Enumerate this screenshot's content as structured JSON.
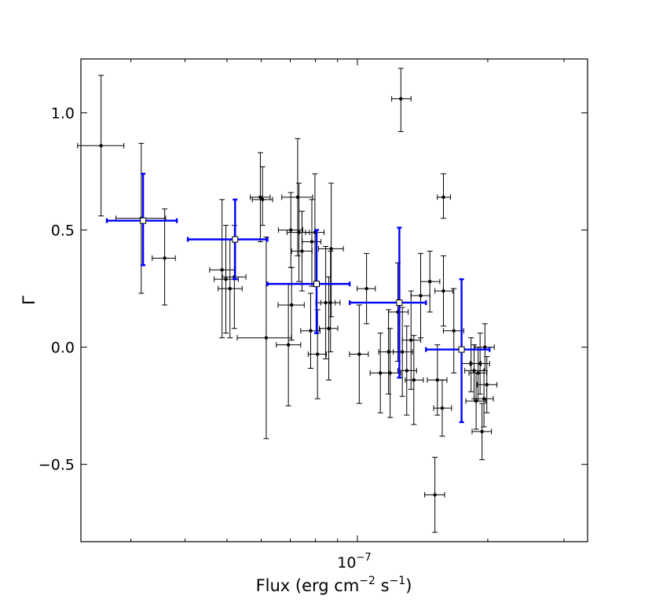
{
  "chart_data": {
    "type": "scatter",
    "title": "",
    "xlabel": "Flux (erg cm−2 s−1)",
    "xlabel_parts": {
      "base": "Flux (erg cm",
      "sup1": "−2",
      "mid": " s",
      "sup2": "−1",
      "end": ")"
    },
    "ylabel": "Γ",
    "x_scale": "log",
    "xlim": [
      2.3e-08,
      3.4e-07
    ],
    "ylim": [
      -0.83,
      1.23
    ],
    "x_tick_label": {
      "value": 1e-07,
      "base": "10",
      "exp": "−7"
    },
    "y_ticks": [
      {
        "value": 1.0,
        "label": "1.0"
      },
      {
        "value": 0.5,
        "label": "0.5"
      },
      {
        "value": 0.0,
        "label": "0.0"
      },
      {
        "value": -0.5,
        "label": "−0.5"
      }
    ],
    "grid": false,
    "legend": "none",
    "series": [
      {
        "color": "#000000",
        "marker": "filled-circle",
        "points": [
          {
            "x": 2.56e-08,
            "y": 0.86,
            "xlo": 2.26e-08,
            "xhi": 2.89e-08,
            "ylo": 0.56,
            "yhi": 1.16
          },
          {
            "x": 3.17e-08,
            "y": 0.55,
            "xlo": 2.77e-08,
            "xhi": 3.61e-08,
            "ylo": 0.23,
            "yhi": 0.87
          },
          {
            "x": 3.59e-08,
            "y": 0.38,
            "xlo": 3.36e-08,
            "xhi": 3.8e-08,
            "ylo": 0.18,
            "yhi": 0.59
          },
          {
            "x": 4.87e-08,
            "y": 0.33,
            "xlo": 4.56e-08,
            "xhi": 5.2e-08,
            "ylo": 0.04,
            "yhi": 0.63
          },
          {
            "x": 4.97e-08,
            "y": 0.29,
            "xlo": 4.67e-08,
            "xhi": 5.31e-08,
            "ylo": 0.06,
            "yhi": 0.52
          },
          {
            "x": 5.08e-08,
            "y": 0.25,
            "xlo": 4.77e-08,
            "xhi": 5.42e-08,
            "ylo": 0.04,
            "yhi": 0.46
          },
          {
            "x": 5.2e-08,
            "y": 0.3,
            "xlo": 4.88e-08,
            "xhi": 5.53e-08,
            "ylo": 0.08,
            "yhi": 0.52
          },
          {
            "x": 5.97e-08,
            "y": 0.64,
            "xlo": 5.66e-08,
            "xhi": 6.29e-08,
            "ylo": 0.45,
            "yhi": 0.83
          },
          {
            "x": 6.04e-08,
            "y": 0.63,
            "xlo": 5.72e-08,
            "xhi": 6.37e-08,
            "ylo": 0.52,
            "yhi": 0.77
          },
          {
            "x": 6.16e-08,
            "y": 0.04,
            "xlo": 5.28e-08,
            "xhi": 7.04e-08,
            "ylo": -0.39,
            "yhi": 0.47
          },
          {
            "x": 6.93e-08,
            "y": 0.01,
            "xlo": 6.5e-08,
            "xhi": 7.4e-08,
            "ylo": -0.25,
            "yhi": 0.27
          },
          {
            "x": 7.02e-08,
            "y": 0.5,
            "xlo": 6.57e-08,
            "xhi": 7.48e-08,
            "ylo": 0.34,
            "yhi": 0.66
          },
          {
            "x": 7.05e-08,
            "y": 0.18,
            "xlo": 6.56e-08,
            "xhi": 7.54e-08,
            "ylo": 0.03,
            "yhi": 0.34
          },
          {
            "x": 7.28e-08,
            "y": 0.64,
            "xlo": 6.69e-08,
            "xhi": 7.88e-08,
            "ylo": 0.39,
            "yhi": 0.89
          },
          {
            "x": 7.33e-08,
            "y": 0.49,
            "xlo": 6.88e-08,
            "xhi": 7.75e-08,
            "ylo": 0.28,
            "yhi": 0.7
          },
          {
            "x": 7.45e-08,
            "y": 0.41,
            "xlo": 7.05e-08,
            "xhi": 7.86e-08,
            "ylo": 0.24,
            "yhi": 0.58
          },
          {
            "x": 7.85e-08,
            "y": 0.45,
            "xlo": 7.46e-08,
            "xhi": 8.24e-08,
            "ylo": 0.26,
            "yhi": 0.63
          },
          {
            "x": 7.8e-08,
            "y": 0.07,
            "xlo": 7.4e-08,
            "xhi": 8.2e-08,
            "ylo": -0.09,
            "yhi": 0.23
          },
          {
            "x": 7.98e-08,
            "y": 0.49,
            "xlo": 7.59e-08,
            "xhi": 8.38e-08,
            "ylo": 0.26,
            "yhi": 0.74
          },
          {
            "x": 8.09e-08,
            "y": -0.03,
            "xlo": 7.7e-08,
            "xhi": 8.48e-08,
            "ylo": -0.22,
            "yhi": 0.16
          },
          {
            "x": 8.45e-08,
            "y": 0.19,
            "xlo": 8.02e-08,
            "xhi": 8.89e-08,
            "ylo": -0.05,
            "yhi": 0.43
          },
          {
            "x": 8.59e-08,
            "y": 0.08,
            "xlo": 8.17e-08,
            "xhi": 9.01e-08,
            "ylo": -0.14,
            "yhi": 0.3
          },
          {
            "x": 8.7e-08,
            "y": 0.42,
            "xlo": 8.13e-08,
            "xhi": 9.28e-08,
            "ylo": 0.13,
            "yhi": 0.7
          },
          {
            "x": 8.67e-08,
            "y": 0.19,
            "xlo": 8.23e-08,
            "xhi": 9.12e-08,
            "ylo": -0.02,
            "yhi": 0.41
          },
          {
            "x": 1.01e-07,
            "y": -0.03,
            "xlo": 9.59e-08,
            "xhi": 1.06e-07,
            "ylo": -0.24,
            "yhi": 0.18
          },
          {
            "x": 1.05e-07,
            "y": 0.25,
            "xlo": 9.99e-08,
            "xhi": 1.1e-07,
            "ylo": 0.1,
            "yhi": 0.4
          },
          {
            "x": 1.13e-07,
            "y": -0.11,
            "xlo": 1.07e-07,
            "xhi": 1.19e-07,
            "ylo": -0.28,
            "yhi": 0.06
          },
          {
            "x": 1.18e-07,
            "y": -0.02,
            "xlo": 1.12e-07,
            "xhi": 1.25e-07,
            "ylo": -0.2,
            "yhi": 0.16
          },
          {
            "x": 1.19e-07,
            "y": -0.11,
            "xlo": 1.13e-07,
            "xhi": 1.26e-07,
            "ylo": -0.3,
            "yhi": 0.08
          },
          {
            "x": 1.24e-07,
            "y": 0.15,
            "xlo": 1.18e-07,
            "xhi": 1.31e-07,
            "ylo": -0.06,
            "yhi": 0.36
          },
          {
            "x": 1.26e-07,
            "y": 1.06,
            "xlo": 1.2e-07,
            "xhi": 1.33e-07,
            "ylo": 0.92,
            "yhi": 1.19
          },
          {
            "x": 1.27e-07,
            "y": -0.02,
            "xlo": 1.21e-07,
            "xhi": 1.34e-07,
            "ylo": -0.21,
            "yhi": 0.17
          },
          {
            "x": 1.3e-07,
            "y": -0.1,
            "xlo": 1.24e-07,
            "xhi": 1.37e-07,
            "ylo": -0.29,
            "yhi": 0.09
          },
          {
            "x": 1.33e-07,
            "y": 0.03,
            "xlo": 1.27e-07,
            "xhi": 1.4e-07,
            "ylo": -0.18,
            "yhi": 0.24
          },
          {
            "x": 1.35e-07,
            "y": -0.14,
            "xlo": 1.29e-07,
            "xhi": 1.42e-07,
            "ylo": -0.33,
            "yhi": 0.05
          },
          {
            "x": 1.4e-07,
            "y": 0.22,
            "xlo": 1.33e-07,
            "xhi": 1.47e-07,
            "ylo": 0.04,
            "yhi": 0.4
          },
          {
            "x": 1.47e-07,
            "y": 0.28,
            "xlo": 1.4e-07,
            "xhi": 1.55e-07,
            "ylo": 0.15,
            "yhi": 0.41
          },
          {
            "x": 1.53e-07,
            "y": -0.14,
            "xlo": 1.45e-07,
            "xhi": 1.61e-07,
            "ylo": -0.29,
            "yhi": 0.01
          },
          {
            "x": 1.51e-07,
            "y": -0.63,
            "xlo": 1.43e-07,
            "xhi": 1.59e-07,
            "ylo": -0.79,
            "yhi": -0.47
          },
          {
            "x": 1.58e-07,
            "y": 0.64,
            "xlo": 1.53e-07,
            "xhi": 1.64e-07,
            "ylo": 0.55,
            "yhi": 0.74
          },
          {
            "x": 1.58e-07,
            "y": 0.24,
            "xlo": 1.51e-07,
            "xhi": 1.66e-07,
            "ylo": 0.09,
            "yhi": 0.39
          },
          {
            "x": 1.57e-07,
            "y": -0.26,
            "xlo": 1.5e-07,
            "xhi": 1.65e-07,
            "ylo": -0.38,
            "yhi": -0.14
          },
          {
            "x": 1.67e-07,
            "y": 0.07,
            "xlo": 1.58e-07,
            "xhi": 1.76e-07,
            "ylo": -0.11,
            "yhi": 0.25
          },
          {
            "x": 1.83e-07,
            "y": -0.07,
            "xlo": 1.74e-07,
            "xhi": 1.93e-07,
            "ylo": -0.19,
            "yhi": 0.04
          },
          {
            "x": 1.86e-07,
            "y": -0.1,
            "xlo": 1.77e-07,
            "xhi": 1.96e-07,
            "ylo": -0.22,
            "yhi": 0.01
          },
          {
            "x": 1.88e-07,
            "y": -0.23,
            "xlo": 1.78e-07,
            "xhi": 1.98e-07,
            "ylo": -0.35,
            "yhi": -0.11
          },
          {
            "x": 1.9e-07,
            "y": -0.11,
            "xlo": 1.81e-07,
            "xhi": 1.99e-07,
            "ylo": -0.23,
            "yhi": 0.0
          },
          {
            "x": 1.92e-07,
            "y": -0.07,
            "xlo": 1.82e-07,
            "xhi": 2.02e-07,
            "ylo": -0.2,
            "yhi": 0.06
          },
          {
            "x": 1.94e-07,
            "y": -0.36,
            "xlo": 1.84e-07,
            "xhi": 2.04e-07,
            "ylo": -0.48,
            "yhi": -0.24
          },
          {
            "x": 1.96e-07,
            "y": -0.22,
            "xlo": 1.86e-07,
            "xhi": 2.06e-07,
            "ylo": -0.34,
            "yhi": -0.1
          },
          {
            "x": 1.97e-07,
            "y": 0.0,
            "xlo": 1.87e-07,
            "xhi": 2.07e-07,
            "ylo": -0.1,
            "yhi": 0.1
          },
          {
            "x": 1.99e-07,
            "y": -0.16,
            "xlo": 1.89e-07,
            "xhi": 2.1e-07,
            "ylo": -0.28,
            "yhi": -0.04
          }
        ]
      },
      {
        "color": "#0000ff",
        "marker": "open-square",
        "points": [
          {
            "x": 3.2e-08,
            "y": 0.54,
            "xlo": 2.64e-08,
            "xhi": 3.83e-08,
            "ylo": 0.35,
            "yhi": 0.74
          },
          {
            "x": 5.22e-08,
            "y": 0.46,
            "xlo": 4.06e-08,
            "xhi": 6.2e-08,
            "ylo": 0.29,
            "yhi": 0.63
          },
          {
            "x": 8.05e-08,
            "y": 0.27,
            "xlo": 6.2e-08,
            "xhi": 9.6e-08,
            "ylo": 0.06,
            "yhi": 0.5
          },
          {
            "x": 1.25e-07,
            "y": 0.19,
            "xlo": 9.6e-08,
            "xhi": 1.44e-07,
            "ylo": -0.13,
            "yhi": 0.51
          },
          {
            "x": 1.74e-07,
            "y": -0.01,
            "xlo": 1.44e-07,
            "xhi": 2.02e-07,
            "ylo": -0.32,
            "yhi": 0.29
          }
        ]
      }
    ]
  }
}
